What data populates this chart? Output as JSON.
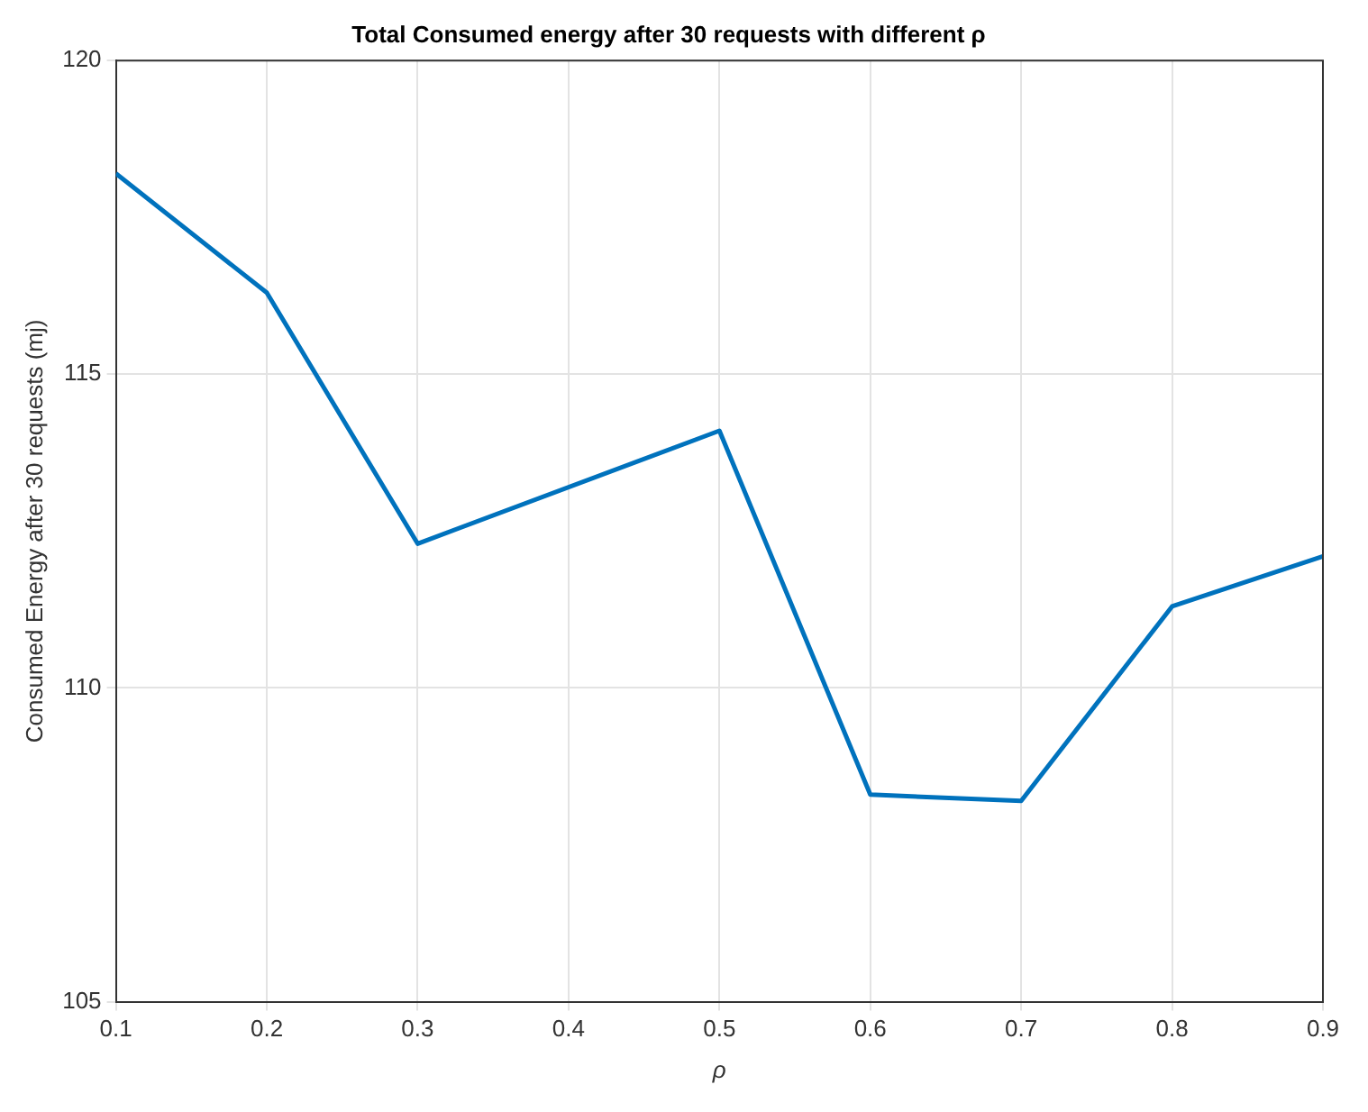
{
  "chart_data": {
    "type": "line",
    "title": "Total Consumed energy after 30 requests with different ρ",
    "xlabel": "ρ",
    "ylabel": "Consumed Energy after 30 requests (mj)",
    "x": [
      0.1,
      0.2,
      0.3,
      0.5,
      0.6,
      0.7,
      0.8,
      0.9
    ],
    "series": [
      {
        "color": "#0072bd",
        "values": [
          118.2,
          116.3,
          112.3,
          114.1,
          108.3,
          108.2,
          111.3,
          112.1
        ]
      }
    ],
    "xlim": [
      0.1,
      0.9
    ],
    "xticks": [
      0.1,
      0.2,
      0.3,
      0.4,
      0.5,
      0.6,
      0.7,
      0.8,
      0.9
    ],
    "ylim": [
      105,
      120
    ],
    "yticks": [
      105,
      110,
      115,
      120
    ],
    "grid": true,
    "legend": false,
    "marker": "none",
    "line_style": "solid"
  }
}
